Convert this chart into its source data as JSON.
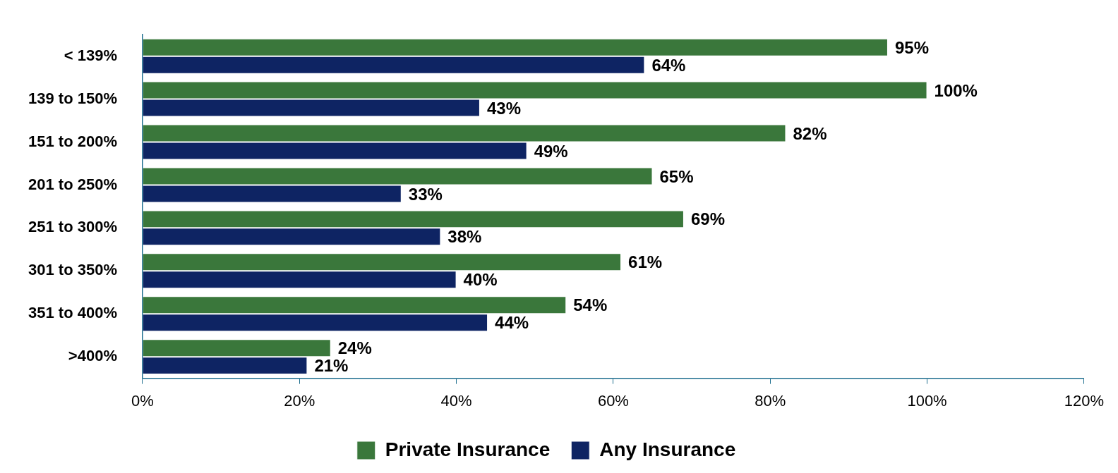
{
  "chart_data": {
    "type": "bar",
    "orientation": "horizontal",
    "categories": [
      "< 139%",
      "139 to 150%",
      "151 to 200%",
      "201 to 250%",
      "251 to 300%",
      "301 to 350%",
      "351 to 400%",
      ">400%"
    ],
    "series": [
      {
        "name": "Private Insurance",
        "color": "#3a773b",
        "values": [
          95,
          100,
          82,
          65,
          69,
          61,
          54,
          24
        ],
        "value_labels": [
          "95%",
          "100%",
          "82%",
          "65%",
          "69%",
          "61%",
          "54%",
          "24%"
        ]
      },
      {
        "name": "Any Insurance",
        "color": "#0e2463",
        "values": [
          64,
          43,
          49,
          33,
          38,
          40,
          44,
          21
        ],
        "value_labels": [
          "64%",
          "43%",
          "49%",
          "33%",
          "38%",
          "40%",
          "44%",
          "21%"
        ]
      }
    ],
    "xlim": [
      0,
      120
    ],
    "xticks": [
      {
        "value": 0,
        "label": "0%"
      },
      {
        "value": 20,
        "label": "20%"
      },
      {
        "value": 40,
        "label": "40%"
      },
      {
        "value": 60,
        "label": "60%"
      },
      {
        "value": 80,
        "label": "80%"
      },
      {
        "value": 100,
        "label": "100%"
      },
      {
        "value": 120,
        "label": "120%"
      }
    ],
    "legend": "bottom"
  }
}
